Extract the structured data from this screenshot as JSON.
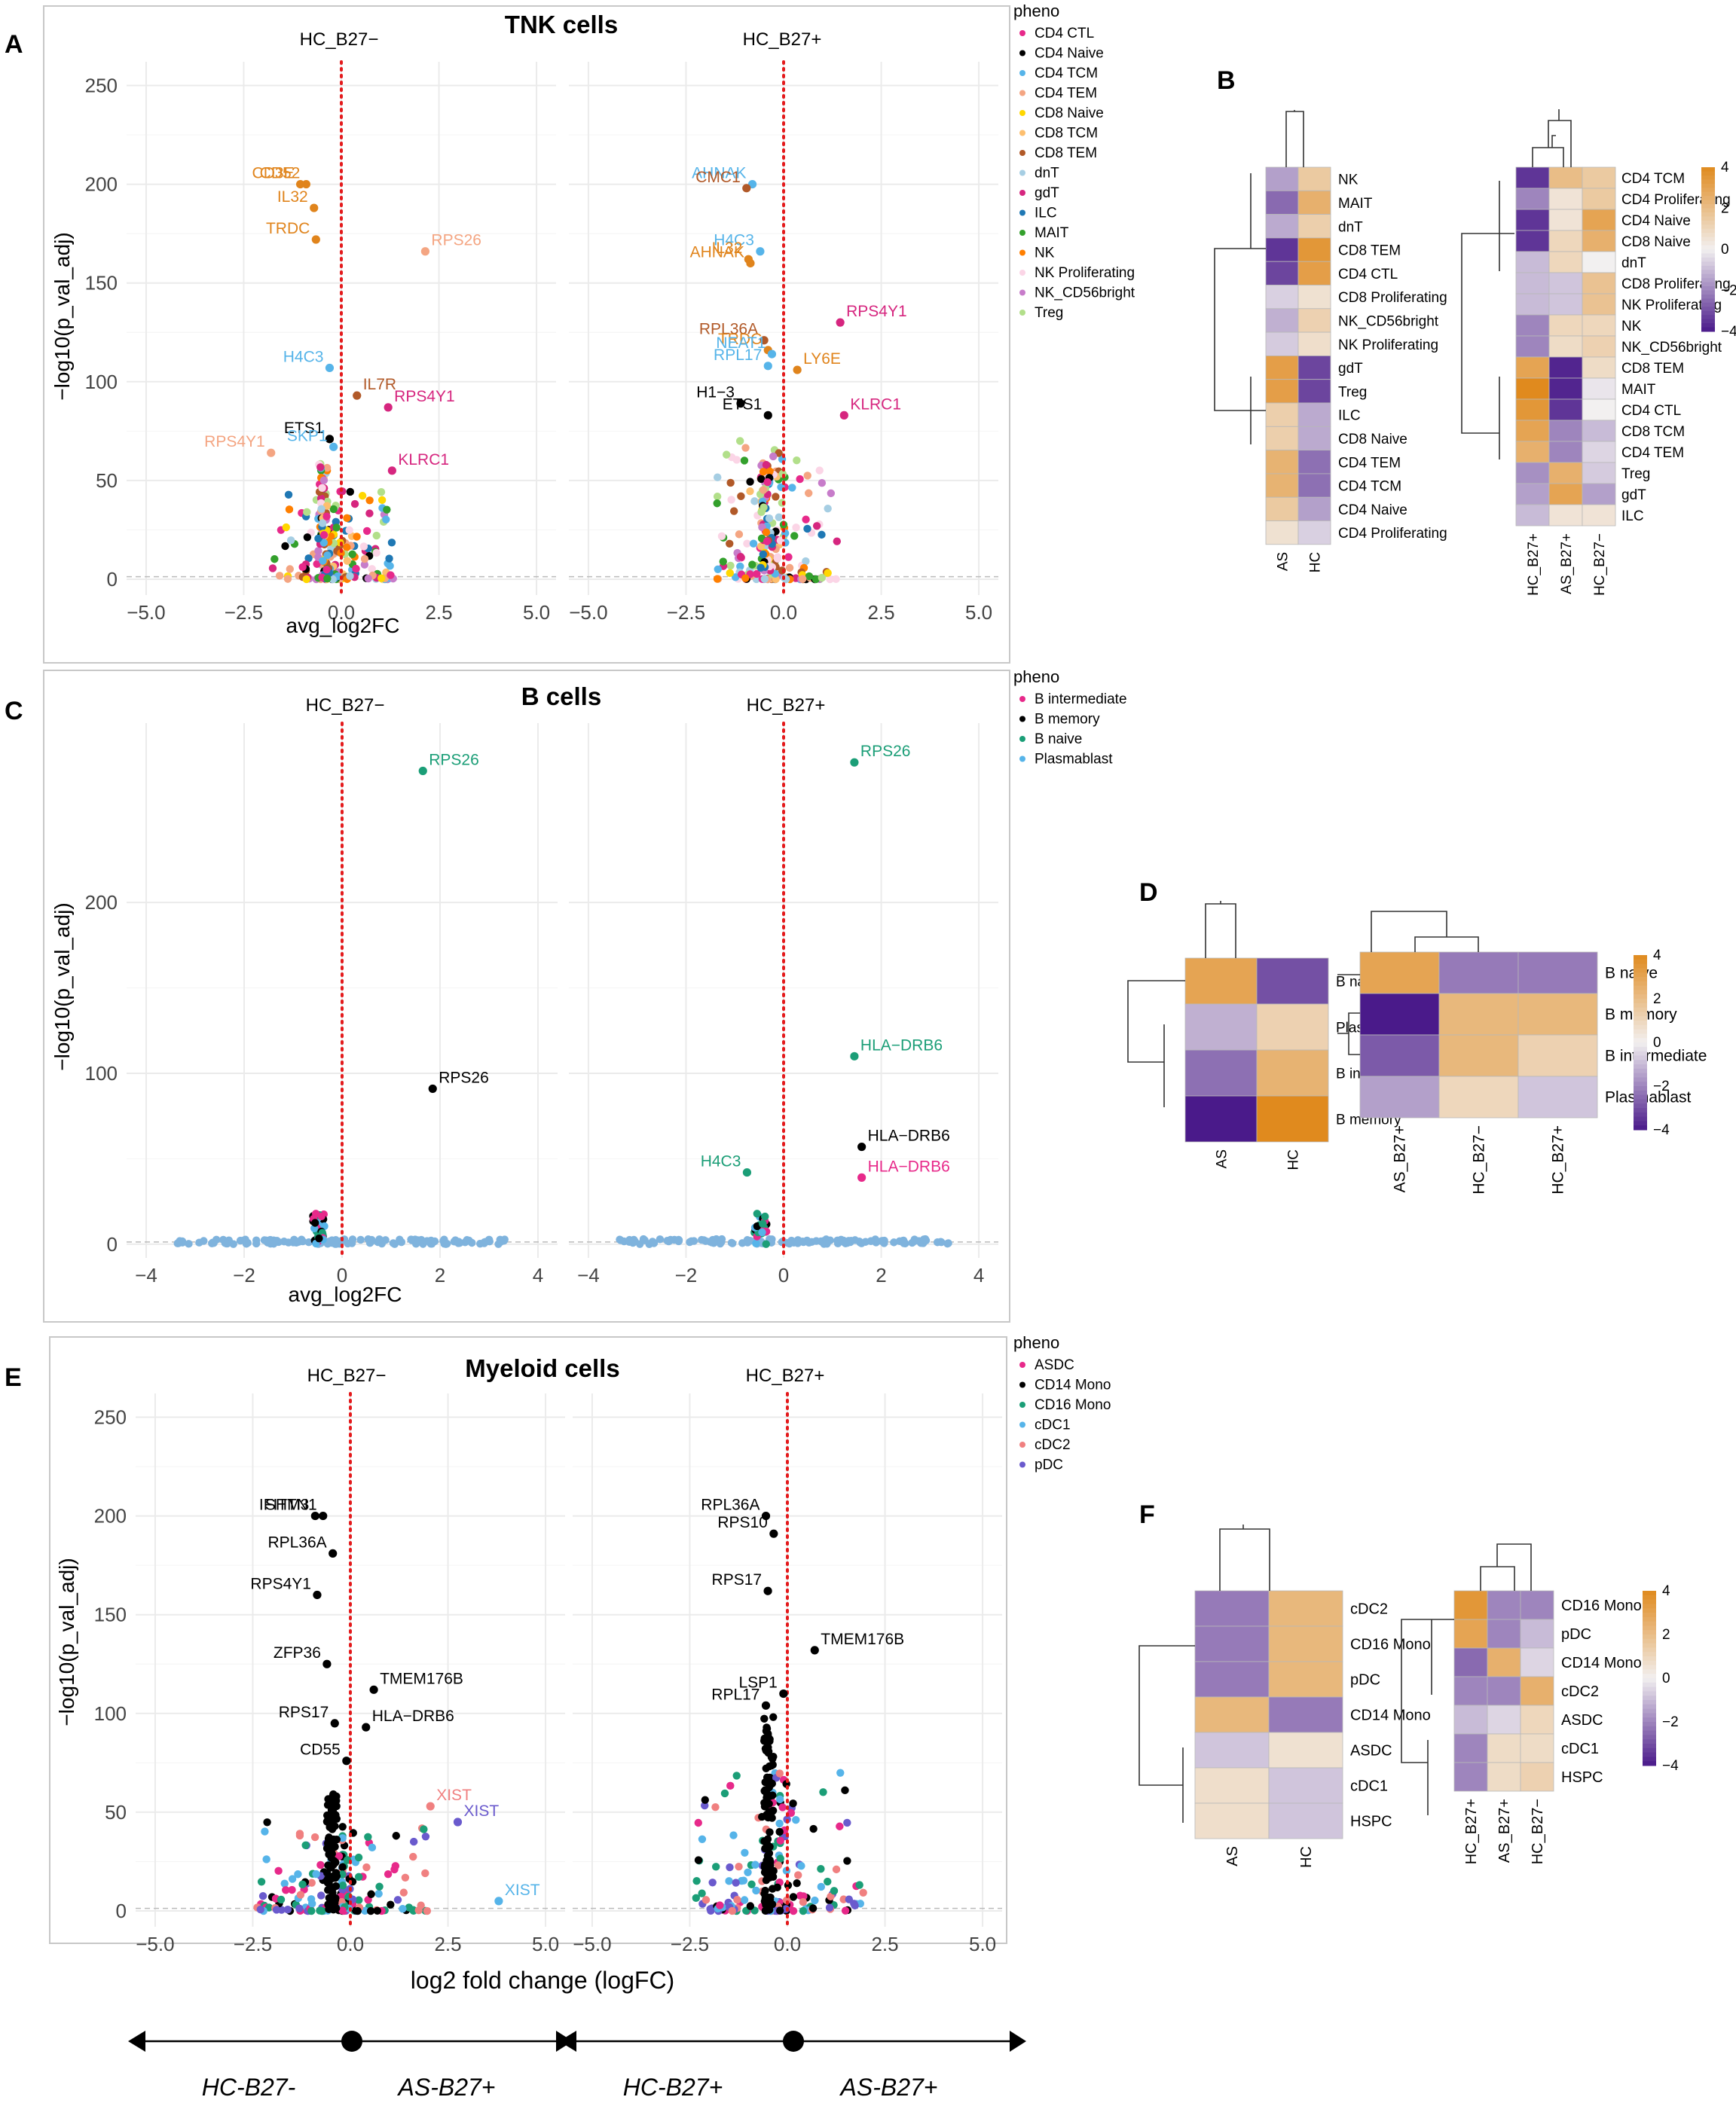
{
  "colors": {
    "hm_low": "#4a1a8a",
    "hm_mid": "#f2f0f0",
    "hm_high": "#e08a1e",
    "pval_line": "#e41a1c",
    "bg_points": "#7fb3dd"
  },
  "panel_labels": {
    "A": "A",
    "B": "B",
    "C": "C",
    "D": "D",
    "E": "E",
    "F": "F"
  },
  "volcano_panels": [
    {
      "id": "tnk",
      "title": "TNK cells",
      "facets": [
        "HC_B27−",
        "HC_B27+"
      ],
      "xlabel": "avg_log2FC",
      "ylabel": "−log10(p_val_adj)",
      "legend_title": "pheno",
      "xlim": [
        -5.5,
        5.5
      ],
      "xticks": [
        -5.0,
        -2.5,
        0.0,
        2.5,
        5.0
      ],
      "xtick_labels": [
        "−5.0",
        "−2.5",
        "0.0",
        "2.5",
        "5.0"
      ],
      "ylim": [
        -8,
        262
      ],
      "yticks": [
        0,
        50,
        100,
        150,
        200,
        250
      ],
      "legend": [
        {
          "name": "CD4 CTL",
          "color": "#e7298a"
        },
        {
          "name": "CD4 Naive",
          "color": "#000000"
        },
        {
          "name": "CD4 TCM",
          "color": "#56b4e9"
        },
        {
          "name": "CD4 TEM",
          "color": "#f4a582"
        },
        {
          "name": "CD8 Naive",
          "color": "#ffd700"
        },
        {
          "name": "CD8 TCM",
          "color": "#fdbf6f"
        },
        {
          "name": "CD8 TEM",
          "color": "#b15928"
        },
        {
          "name": "dnT",
          "color": "#a6cee3"
        },
        {
          "name": "gdT",
          "color": "#d6267f"
        },
        {
          "name": "ILC",
          "color": "#1f78b4"
        },
        {
          "name": "MAIT",
          "color": "#33a02c"
        },
        {
          "name": "NK",
          "color": "#ff7f00"
        },
        {
          "name": "NK Proliferating",
          "color": "#fbd5e6"
        },
        {
          "name": "NK_CD56bright",
          "color": "#c77cca"
        },
        {
          "name": "Treg",
          "color": "#b2df8a"
        }
      ],
      "chart_data": {
        "type": "scatter",
        "series": [
          {
            "name": "HC_B27−",
            "labeled_points": [
              {
                "label": "CD3E",
                "x": -1.05,
                "y": 200,
                "color": "#e0841c"
              },
              {
                "label": "CD52",
                "x": -0.9,
                "y": 200,
                "color": "#e0841c"
              },
              {
                "label": "IL32",
                "x": -0.7,
                "y": 188,
                "color": "#e0841c"
              },
              {
                "label": "TRDC",
                "x": -0.65,
                "y": 172,
                "color": "#e0841c"
              },
              {
                "label": "RPS26",
                "x": 2.15,
                "y": 166,
                "color": "#f4a582"
              },
              {
                "label": "H4C3",
                "x": -0.3,
                "y": 107,
                "color": "#56b4e9"
              },
              {
                "label": "IL7R",
                "x": 0.4,
                "y": 93,
                "color": "#b15928"
              },
              {
                "label": "RPS4Y1",
                "x": 1.2,
                "y": 87,
                "color": "#d6267f"
              },
              {
                "label": "ETS1",
                "x": -0.3,
                "y": 71,
                "color": "#000000"
              },
              {
                "label": "SKP1",
                "x": -0.2,
                "y": 67,
                "color": "#56b4e9"
              },
              {
                "label": "RPS4Y1",
                "x": -1.8,
                "y": 64,
                "color": "#f4a582"
              },
              {
                "label": "KLRC1",
                "x": 1.3,
                "y": 55,
                "color": "#d6267f"
              }
            ]
          },
          {
            "name": "HC_B27+",
            "labeled_points": [
              {
                "label": "AHNAK",
                "x": -0.8,
                "y": 200,
                "color": "#56b4e9"
              },
              {
                "label": "CMC1",
                "x": -0.95,
                "y": 198,
                "color": "#b15928"
              },
              {
                "label": "H4C3",
                "x": -0.6,
                "y": 166,
                "color": "#56b4e9"
              },
              {
                "label": "IL32",
                "x": -0.9,
                "y": 162,
                "color": "#e0841c"
              },
              {
                "label": "AHNAK",
                "x": -0.85,
                "y": 160,
                "color": "#e0841c"
              },
              {
                "label": "RPS4Y1",
                "x": 1.45,
                "y": 130,
                "color": "#d6267f"
              },
              {
                "label": "RPL36A",
                "x": -0.5,
                "y": 121,
                "color": "#b15928"
              },
              {
                "label": "TRDC",
                "x": -0.4,
                "y": 116,
                "color": "#e0841c"
              },
              {
                "label": "NEAT1",
                "x": -0.3,
                "y": 114,
                "color": "#56b4e9"
              },
              {
                "label": "RPL17",
                "x": -0.4,
                "y": 108,
                "color": "#56b4e9"
              },
              {
                "label": "LY6E",
                "x": 0.35,
                "y": 106,
                "color": "#e0841c"
              },
              {
                "label": "H1−3",
                "x": -1.1,
                "y": 89,
                "color": "#000000"
              },
              {
                "label": "KLRC1",
                "x": 1.55,
                "y": 83,
                "color": "#d6267f"
              },
              {
                "label": "ETS1",
                "x": -0.4,
                "y": 83,
                "color": "#000000"
              }
            ]
          }
        ],
        "annotations": [
          "HC_B27−",
          "HC_B27+"
        ]
      },
      "bottom_tick_labels": true
    },
    {
      "id": "b",
      "title": "B cells",
      "facets": [
        "HC_B27−",
        "HC_B27+"
      ],
      "xlabel": "avg_log2FC",
      "ylabel": "−log10(p_val_adj)",
      "legend_title": "pheno",
      "xlim": [
        -4.4,
        4.4
      ],
      "xticks": [
        -4,
        -2,
        0,
        2,
        4
      ],
      "xtick_labels": [
        "−4",
        "−2",
        "0",
        "2",
        "4"
      ],
      "ylim": [
        -8,
        305
      ],
      "yticks": [
        0,
        100,
        200
      ],
      "legend": [
        {
          "name": "B intermediate",
          "color": "#e7298a"
        },
        {
          "name": "B memory",
          "color": "#000000"
        },
        {
          "name": "B naive",
          "color": "#1b9e77"
        },
        {
          "name": "Plasmablast",
          "color": "#56b4e9"
        }
      ],
      "chart_data": {
        "type": "scatter",
        "series": [
          {
            "name": "HC_B27−",
            "labeled_points": [
              {
                "label": "RPS26",
                "x": 1.65,
                "y": 277,
                "color": "#1b9e77"
              },
              {
                "label": "RPS26",
                "x": 1.85,
                "y": 91,
                "color": "#000000"
              }
            ]
          },
          {
            "name": "HC_B27+",
            "labeled_points": [
              {
                "label": "RPS26",
                "x": 1.45,
                "y": 282,
                "color": "#1b9e77"
              },
              {
                "label": "HLA−DRB6",
                "x": 1.45,
                "y": 110,
                "color": "#1b9e77"
              },
              {
                "label": "H4C3",
                "x": -0.75,
                "y": 42,
                "color": "#1b9e77"
              },
              {
                "label": "HLA−DRB6",
                "x": 1.6,
                "y": 57,
                "color": "#000000"
              },
              {
                "label": "HLA−DRB6",
                "x": 1.6,
                "y": 39,
                "color": "#e7298a"
              }
            ]
          }
        ]
      },
      "bottom_tick_labels": true
    },
    {
      "id": "myeloid",
      "title": "Myeloid cells",
      "facets": [
        "HC_B27−",
        "HC_B27+"
      ],
      "xlabel": "log2 fold change (logFC)",
      "ylabel": "−log10(p_val_adj)",
      "legend_title": "pheno",
      "xlim": [
        -5.5,
        5.5
      ],
      "xticks": [
        -5.0,
        -2.5,
        0.0,
        2.5,
        5.0
      ],
      "xtick_labels": [
        "−5.0",
        "−2.5",
        "0.0",
        "2.5",
        "5.0"
      ],
      "ylim": [
        -8,
        262
      ],
      "yticks": [
        0,
        50,
        100,
        150,
        200,
        250
      ],
      "legend": [
        {
          "name": "ASDC",
          "color": "#e7298a"
        },
        {
          "name": "CD14 Mono",
          "color": "#000000"
        },
        {
          "name": "CD16 Mono",
          "color": "#1b9e77"
        },
        {
          "name": "cDC1",
          "color": "#56b4e9"
        },
        {
          "name": "cDC2",
          "color": "#f08080"
        },
        {
          "name": "pDC",
          "color": "#6a5acd"
        }
      ],
      "chart_data": {
        "type": "scatter",
        "series": [
          {
            "name": "HC_B27−",
            "labeled_points": [
              {
                "label": "IFITM3",
                "x": -0.9,
                "y": 200,
                "color": "#000000"
              },
              {
                "label": "SHTN1",
                "x": -0.7,
                "y": 200,
                "color": "#000000"
              },
              {
                "label": "RPL36A",
                "x": -0.45,
                "y": 181,
                "color": "#000000"
              },
              {
                "label": "RPS4Y1",
                "x": -0.85,
                "y": 160,
                "color": "#000000"
              },
              {
                "label": "ZFP36",
                "x": -0.6,
                "y": 125,
                "color": "#000000"
              },
              {
                "label": "TMEM176B",
                "x": 0.6,
                "y": 112,
                "color": "#000000"
              },
              {
                "label": "RPS17",
                "x": -0.4,
                "y": 95,
                "color": "#000000"
              },
              {
                "label": "HLA−DRB6",
                "x": 0.4,
                "y": 93,
                "color": "#000000"
              },
              {
                "label": "CD55",
                "x": -0.1,
                "y": 76,
                "color": "#000000"
              },
              {
                "label": "XIST",
                "x": 2.05,
                "y": 53,
                "color": "#f08080"
              },
              {
                "label": "XIST",
                "x": 2.75,
                "y": 45,
                "color": "#6a5acd"
              },
              {
                "label": "XIST",
                "x": 3.8,
                "y": 5,
                "color": "#56b4e9"
              }
            ]
          },
          {
            "name": "HC_B27+",
            "labeled_points": [
              {
                "label": "RPL36A",
                "x": -0.55,
                "y": 200,
                "color": "#000000"
              },
              {
                "label": "RPS10",
                "x": -0.35,
                "y": 191,
                "color": "#000000"
              },
              {
                "label": "RPS17",
                "x": -0.5,
                "y": 162,
                "color": "#000000"
              },
              {
                "label": "TMEM176B",
                "x": 0.7,
                "y": 132,
                "color": "#000000"
              },
              {
                "label": "LSP1",
                "x": -0.1,
                "y": 110,
                "color": "#000000"
              },
              {
                "label": "RPL17",
                "x": -0.55,
                "y": 104,
                "color": "#000000"
              }
            ]
          }
        ]
      },
      "bottom_tick_labels": true
    }
  ],
  "heatmaps": [
    {
      "id": "B1",
      "rows": [
        "NK",
        "MAIT",
        "dnT",
        "CD8 TEM",
        "CD4 CTL",
        "CD8 Proliferating",
        "NK_CD56bright",
        "NK Proliferating",
        "gdT",
        "Treg",
        "ILC",
        "CD8 Naive",
        "CD4 TEM",
        "CD4 TCM",
        "CD4 Naive",
        "CD4 Proliferating"
      ],
      "cols": [
        "AS",
        "HC"
      ],
      "values": [
        [
          -1.5,
          1.5
        ],
        [
          -2.5,
          2.5
        ],
        [
          -1.3,
          1.3
        ],
        [
          -3.5,
          3.5
        ],
        [
          -3.2,
          3.2
        ],
        [
          -0.6,
          0.6
        ],
        [
          -1.2,
          1.2
        ],
        [
          -0.7,
          0.7
        ],
        [
          3.2,
          -3.2
        ],
        [
          3.2,
          -3.2
        ],
        [
          1.3,
          -1.3
        ],
        [
          1.3,
          -1.3
        ],
        [
          2.4,
          -2.4
        ],
        [
          2.4,
          -2.4
        ],
        [
          1.5,
          -1.5
        ],
        [
          0.6,
          -0.6
        ]
      ]
    },
    {
      "id": "B2",
      "rows": [
        "CD4 TCM",
        "CD4 Proliferating",
        "CD4 Naive",
        "CD8 Naive",
        "dnT",
        "CD8 Proliferating",
        "NK Proliferating",
        "NK",
        "NK_CD56bright",
        "CD8 TEM",
        "MAIT",
        "CD4 CTL",
        "CD8 TCM",
        "CD4 TEM",
        "Treg",
        "gdT",
        "ILC"
      ],
      "cols": [
        "HC_B27+",
        "AS_B27+",
        "HC_B27−"
      ],
      "values": [
        [
          -3.5,
          2.0,
          1.5
        ],
        [
          -2.0,
          0.5,
          1.5
        ],
        [
          -3.5,
          0.5,
          3.0
        ],
        [
          -3.5,
          1.0,
          2.5
        ],
        [
          -1.0,
          1.0,
          0.0
        ],
        [
          -1.0,
          -0.8,
          1.8
        ],
        [
          -1.0,
          -0.8,
          1.8
        ],
        [
          -2.0,
          1.0,
          1.0
        ],
        [
          -2.0,
          0.8,
          1.2
        ],
        [
          3.0,
          -3.8,
          0.8
        ],
        [
          4.0,
          -3.8,
          -0.2
        ],
        [
          3.5,
          -3.5,
          0.0
        ],
        [
          3.0,
          -2.0,
          -1.0
        ],
        [
          2.5,
          -2.0,
          -0.5
        ],
        [
          -1.8,
          2.5,
          -0.7
        ],
        [
          -1.5,
          3.0,
          -1.5
        ],
        [
          -1.0,
          0.5,
          0.5
        ]
      ]
    },
    {
      "id": "D1",
      "rows": [
        "B naive",
        "Plasmablast",
        "B intermediate",
        "B memory"
      ],
      "cols": [
        "AS",
        "HC"
      ],
      "values": [
        [
          3.0,
          -3.0
        ],
        [
          -1.2,
          1.2
        ],
        [
          -2.4,
          2.4
        ],
        [
          -4.0,
          4.0
        ]
      ]
    },
    {
      "id": "D2",
      "rows": [
        "B naive",
        "B memory",
        "B intermediate",
        "Plasmablast"
      ],
      "cols": [
        "AS_B27+",
        "HC_B27−",
        "HC_B27+"
      ],
      "values": [
        [
          3.0,
          -2.2,
          -2.2
        ],
        [
          -4.0,
          2.2,
          2.2
        ],
        [
          -2.8,
          2.2,
          1.2
        ],
        [
          -1.5,
          1.0,
          -0.8
        ]
      ]
    },
    {
      "id": "F1",
      "rows": [
        "cDC2",
        "CD16 Mono",
        "pDC",
        "CD14 Mono",
        "ASDC",
        "cDC1",
        "HSPC"
      ],
      "cols": [
        "AS",
        "HC"
      ],
      "values": [
        [
          -2.2,
          2.2
        ],
        [
          -2.2,
          2.2
        ],
        [
          -2.2,
          2.2
        ],
        [
          2.2,
          -2.2
        ],
        [
          -0.8,
          0.6
        ],
        [
          0.7,
          -0.8
        ],
        [
          0.7,
          -0.8
        ]
      ]
    },
    {
      "id": "F2",
      "rows": [
        "CD16 Mono",
        "pDC",
        "CD14 Mono",
        "cDC2",
        "ASDC",
        "cDC1",
        "HSPC"
      ],
      "cols": [
        "HC_B27+",
        "AS_B27+",
        "HC_B27−"
      ],
      "values": [
        [
          3.5,
          -2.0,
          -2.0
        ],
        [
          3.0,
          -2.0,
          -1.0
        ],
        [
          -2.5,
          2.5,
          -0.5
        ],
        [
          -2.0,
          -2.0,
          2.5
        ],
        [
          -1.0,
          -0.5,
          1.0
        ],
        [
          -2.0,
          0.8,
          0.8
        ],
        [
          -2.0,
          0.8,
          1.2
        ]
      ]
    }
  ],
  "colorbar": {
    "ticks_tnk": [
      "4",
      "2",
      "0",
      "−2",
      "−4"
    ],
    "ticks_b": [
      "4",
      "2",
      "0",
      "−2",
      "−4"
    ],
    "ticks_f": [
      "4",
      "2",
      "0",
      "−2",
      "−4"
    ]
  },
  "arrows": {
    "labels": [
      "HC-B27-",
      "AS-B27+",
      "HC-B27+",
      "AS-B27+"
    ]
  }
}
